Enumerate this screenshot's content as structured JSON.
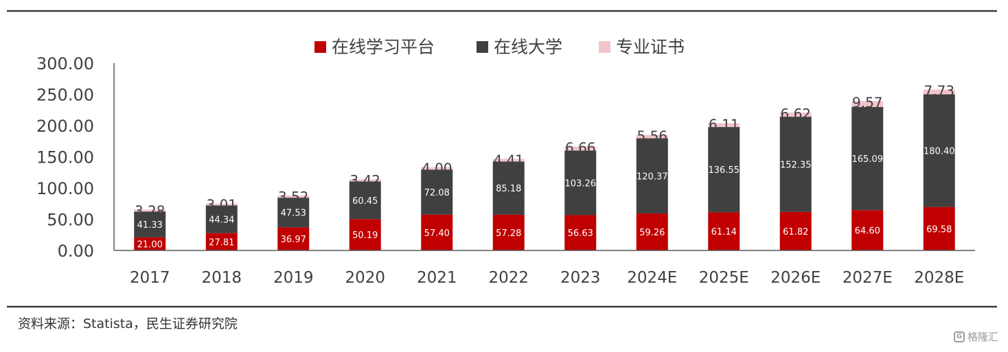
{
  "chart_data": {
    "type": "bar",
    "stacked": true,
    "categories": [
      "2017",
      "2018",
      "2019",
      "2020",
      "2021",
      "2022",
      "2023",
      "2024E",
      "2025E",
      "2026E",
      "2027E",
      "2028E"
    ],
    "series": [
      {
        "name": "在线学习平台",
        "color": "#c00000",
        "values": [
          21.0,
          27.81,
          36.97,
          50.19,
          57.4,
          57.28,
          56.63,
          59.26,
          61.14,
          61.82,
          64.6,
          69.58
        ]
      },
      {
        "name": "在线大学",
        "color": "#404040",
        "values": [
          41.33,
          44.34,
          47.53,
          60.45,
          72.08,
          85.18,
          103.26,
          120.37,
          136.55,
          152.35,
          165.09,
          180.4
        ]
      },
      {
        "name": "专业证书",
        "color": "#f2c4cc",
        "values": [
          3.28,
          3.01,
          3.52,
          3.42,
          4.0,
          4.41,
          6.66,
          5.56,
          6.11,
          6.62,
          9.57,
          7.73
        ]
      }
    ],
    "value_labels": {
      "在线学习平台": [
        "21.00",
        "27.81",
        "36.97",
        "50.19",
        "57.40",
        "57.28",
        "56.63",
        "59.26",
        "61.14",
        "61.82",
        "64.60",
        "69.58"
      ],
      "在线大学": [
        "41.33",
        "44.34",
        "47.53",
        "60.45",
        "72.08",
        "85.18",
        "103.26",
        "120.37",
        "136.55",
        "152.35",
        "165.09",
        "180.40"
      ],
      "专业证书": [
        "3.28",
        "3.01",
        "3.52",
        "3.42",
        "4.00",
        "4.41",
        "6.66",
        "5.56",
        "6.11",
        "6.62",
        "9.57",
        "7.73"
      ]
    },
    "ylim": [
      0,
      300
    ],
    "yticks": [
      "0.00",
      "50.00",
      "100.00",
      "150.00",
      "200.00",
      "250.00",
      "300.00"
    ],
    "grid": false,
    "legend_position": "top-center",
    "title": "",
    "xlabel": "",
    "ylabel": ""
  },
  "footer": {
    "source": "资料来源：Statista，民生证券研究院",
    "watermark": "格隆汇",
    "watermark_logo": "G"
  }
}
